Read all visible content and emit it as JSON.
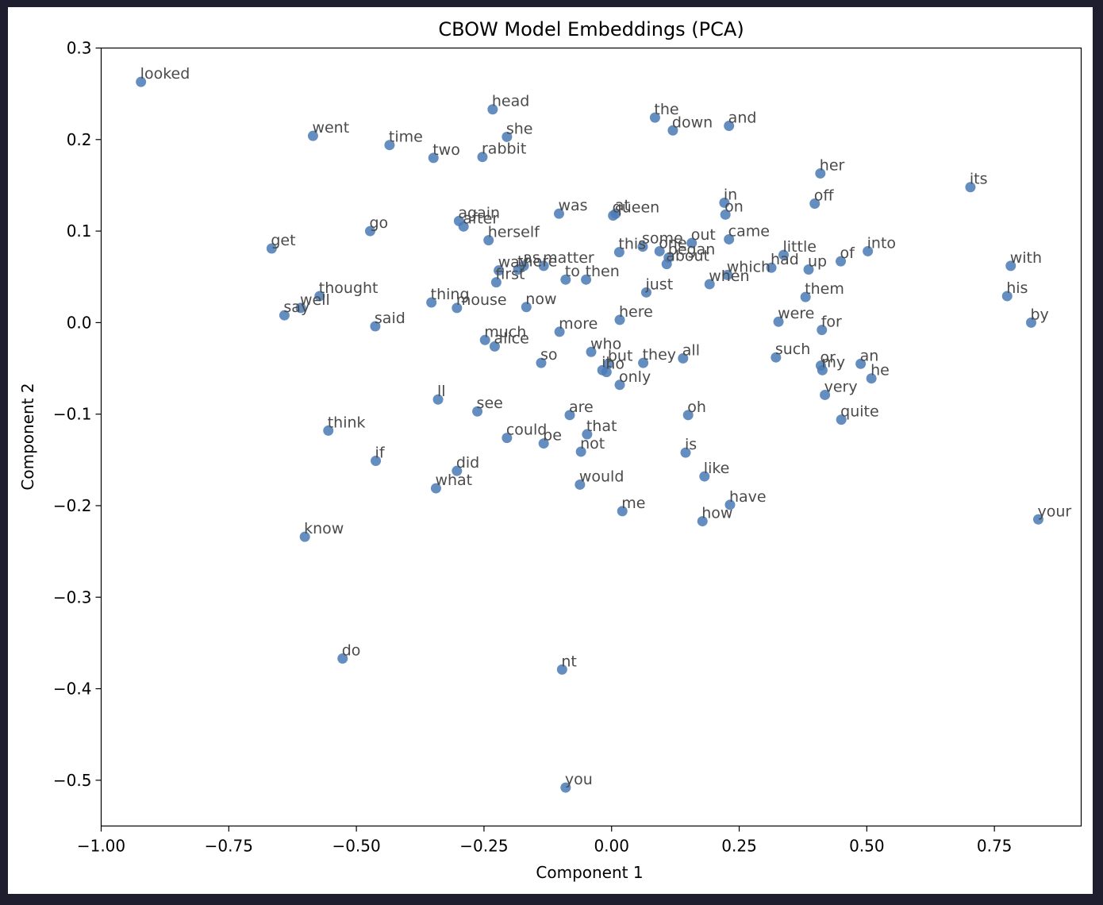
{
  "chart_data": {
    "type": "scatter",
    "title": "CBOW Model Embeddings (PCA)",
    "xlabel": "Component 1",
    "ylabel": "Component 2",
    "xlim": [
      -1.0,
      0.92
    ],
    "ylim": [
      -0.55,
      0.3
    ],
    "xticks": [
      -1.0,
      -0.75,
      -0.5,
      -0.25,
      0.0,
      0.25,
      0.5,
      0.75
    ],
    "xtick_labels": [
      "−1.00",
      "−0.75",
      "−0.50",
      "−0.25",
      "0.00",
      "0.25",
      "0.50",
      "0.75"
    ],
    "yticks": [
      0.3,
      0.2,
      0.1,
      0.0,
      -0.1,
      -0.2,
      -0.3,
      -0.4,
      -0.5
    ],
    "ytick_labels": [
      "0.3",
      "0.2",
      "0.1",
      "0.0",
      "−0.1",
      "−0.2",
      "−0.3",
      "−0.4",
      "−0.5"
    ],
    "marker_color": "#4a7ab5",
    "grid": false,
    "points": [
      {
        "word": "looked",
        "x": -0.922,
        "y": 0.263
      },
      {
        "word": "head",
        "x": -0.233,
        "y": 0.233
      },
      {
        "word": "went",
        "x": -0.585,
        "y": 0.204
      },
      {
        "word": "time",
        "x": -0.435,
        "y": 0.194
      },
      {
        "word": "two",
        "x": -0.349,
        "y": 0.18
      },
      {
        "word": "she",
        "x": -0.205,
        "y": 0.203
      },
      {
        "word": "rabbit",
        "x": -0.253,
        "y": 0.181
      },
      {
        "word": "the",
        "x": 0.085,
        "y": 0.224
      },
      {
        "word": "down",
        "x": 0.12,
        "y": 0.21
      },
      {
        "word": "and",
        "x": 0.23,
        "y": 0.215
      },
      {
        "word": "her",
        "x": 0.409,
        "y": 0.163
      },
      {
        "word": "its",
        "x": 0.703,
        "y": 0.148
      },
      {
        "word": "in",
        "x": 0.221,
        "y": 0.131
      },
      {
        "word": "on",
        "x": 0.223,
        "y": 0.118
      },
      {
        "word": "off",
        "x": 0.398,
        "y": 0.13
      },
      {
        "word": "was",
        "x": -0.103,
        "y": 0.119
      },
      {
        "word": "at",
        "x": 0.008,
        "y": 0.119
      },
      {
        "word": "queen",
        "x": 0.003,
        "y": 0.117
      },
      {
        "word": "again",
        "x": -0.299,
        "y": 0.111
      },
      {
        "word": "after",
        "x": -0.29,
        "y": 0.105
      },
      {
        "word": "go",
        "x": -0.473,
        "y": 0.1
      },
      {
        "word": "get",
        "x": -0.666,
        "y": 0.081
      },
      {
        "word": "herself",
        "x": -0.241,
        "y": 0.09
      },
      {
        "word": "out",
        "x": 0.157,
        "y": 0.087
      },
      {
        "word": "came",
        "x": 0.23,
        "y": 0.091
      },
      {
        "word": "this",
        "x": 0.015,
        "y": 0.077
      },
      {
        "word": "some",
        "x": 0.061,
        "y": 0.083
      },
      {
        "word": "one",
        "x": 0.094,
        "y": 0.078
      },
      {
        "word": "began",
        "x": 0.112,
        "y": 0.071
      },
      {
        "word": "about",
        "x": 0.108,
        "y": 0.064
      },
      {
        "word": "little",
        "x": 0.337,
        "y": 0.074
      },
      {
        "word": "into",
        "x": 0.502,
        "y": 0.078
      },
      {
        "word": "of",
        "x": 0.449,
        "y": 0.067
      },
      {
        "word": "up",
        "x": 0.386,
        "y": 0.058
      },
      {
        "word": "had",
        "x": 0.313,
        "y": 0.06
      },
      {
        "word": "which",
        "x": 0.227,
        "y": 0.052
      },
      {
        "word": "when",
        "x": 0.192,
        "y": 0.042
      },
      {
        "word": "with",
        "x": 0.782,
        "y": 0.062
      },
      {
        "word": "as",
        "x": -0.172,
        "y": 0.062
      },
      {
        "word": "there",
        "x": -0.183,
        "y": 0.058
      },
      {
        "word": "matter",
        "x": -0.133,
        "y": 0.062
      },
      {
        "word": "way",
        "x": -0.221,
        "y": 0.057
      },
      {
        "word": "first",
        "x": -0.226,
        "y": 0.044
      },
      {
        "word": "to",
        "x": -0.09,
        "y": 0.047
      },
      {
        "word": "then",
        "x": -0.05,
        "y": 0.047
      },
      {
        "word": "just",
        "x": 0.068,
        "y": 0.033
      },
      {
        "word": "them",
        "x": 0.38,
        "y": 0.028
      },
      {
        "word": "his",
        "x": 0.775,
        "y": 0.029
      },
      {
        "word": "thought",
        "x": -0.572,
        "y": 0.029
      },
      {
        "word": "well",
        "x": -0.609,
        "y": 0.016
      },
      {
        "word": "say",
        "x": -0.641,
        "y": 0.008
      },
      {
        "word": "thing",
        "x": -0.353,
        "y": 0.022
      },
      {
        "word": "mouse",
        "x": -0.303,
        "y": 0.016
      },
      {
        "word": "now",
        "x": -0.167,
        "y": 0.017
      },
      {
        "word": "said",
        "x": -0.463,
        "y": -0.004
      },
      {
        "word": "more",
        "x": -0.102,
        "y": -0.01
      },
      {
        "word": "here",
        "x": 0.016,
        "y": 0.003
      },
      {
        "word": "were",
        "x": 0.327,
        "y": 0.001
      },
      {
        "word": "for",
        "x": 0.412,
        "y": -0.008
      },
      {
        "word": "by",
        "x": 0.822,
        "y": 0.0
      },
      {
        "word": "much",
        "x": -0.248,
        "y": -0.019
      },
      {
        "word": "alice",
        "x": -0.229,
        "y": -0.026
      },
      {
        "word": "who",
        "x": -0.04,
        "y": -0.032
      },
      {
        "word": "so",
        "x": -0.138,
        "y": -0.044
      },
      {
        "word": "all",
        "x": 0.14,
        "y": -0.039
      },
      {
        "word": "they",
        "x": 0.062,
        "y": -0.044
      },
      {
        "word": "but",
        "x": -0.006,
        "y": -0.045
      },
      {
        "word": "it",
        "x": -0.018,
        "y": -0.052
      },
      {
        "word": "no",
        "x": -0.01,
        "y": -0.054
      },
      {
        "word": "such",
        "x": 0.322,
        "y": -0.038
      },
      {
        "word": "or",
        "x": 0.41,
        "y": -0.047
      },
      {
        "word": "my",
        "x": 0.413,
        "y": -0.052
      },
      {
        "word": "an",
        "x": 0.488,
        "y": -0.045
      },
      {
        "word": "he",
        "x": 0.509,
        "y": -0.061
      },
      {
        "word": "only",
        "x": 0.016,
        "y": -0.068
      },
      {
        "word": "very",
        "x": 0.418,
        "y": -0.079
      },
      {
        "word": "ll",
        "x": -0.34,
        "y": -0.084
      },
      {
        "word": "see",
        "x": -0.263,
        "y": -0.097
      },
      {
        "word": "are",
        "x": -0.082,
        "y": -0.101
      },
      {
        "word": "oh",
        "x": 0.15,
        "y": -0.101
      },
      {
        "word": "quite",
        "x": 0.45,
        "y": -0.106
      },
      {
        "word": "think",
        "x": -0.555,
        "y": -0.118
      },
      {
        "word": "could",
        "x": -0.205,
        "y": -0.126
      },
      {
        "word": "be",
        "x": -0.133,
        "y": -0.132
      },
      {
        "word": "that",
        "x": -0.048,
        "y": -0.122
      },
      {
        "word": "not",
        "x": -0.06,
        "y": -0.141
      },
      {
        "word": "is",
        "x": 0.145,
        "y": -0.142
      },
      {
        "word": "if",
        "x": -0.462,
        "y": -0.151
      },
      {
        "word": "did",
        "x": -0.303,
        "y": -0.162
      },
      {
        "word": "what",
        "x": -0.344,
        "y": -0.181
      },
      {
        "word": "would",
        "x": -0.062,
        "y": -0.177
      },
      {
        "word": "like",
        "x": 0.182,
        "y": -0.168
      },
      {
        "word": "have",
        "x": 0.232,
        "y": -0.199
      },
      {
        "word": "me",
        "x": 0.021,
        "y": -0.206
      },
      {
        "word": "how",
        "x": 0.178,
        "y": -0.217
      },
      {
        "word": "your",
        "x": 0.836,
        "y": -0.215
      },
      {
        "word": "know",
        "x": -0.601,
        "y": -0.234
      },
      {
        "word": "do",
        "x": -0.527,
        "y": -0.367
      },
      {
        "word": "nt",
        "x": -0.097,
        "y": -0.379
      },
      {
        "word": "you",
        "x": -0.09,
        "y": -0.508
      }
    ]
  }
}
